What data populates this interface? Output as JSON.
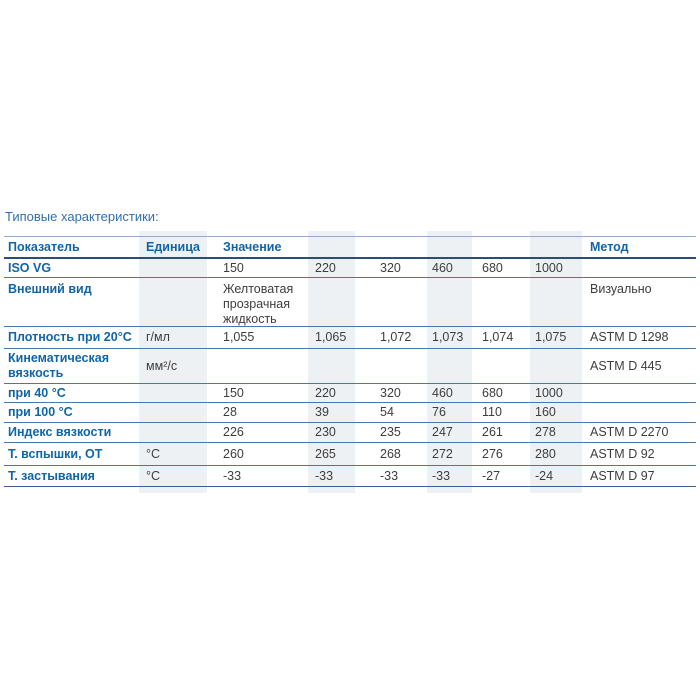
{
  "title": "Типовые характеристики:",
  "colors": {
    "accent_blue": "#1065a8",
    "title_blue": "#2f70ad",
    "stripe": "#eef1f4",
    "border_dark": "#2b4d7d",
    "border_light": "#4d76a8",
    "value_text": "#3d3d3d"
  },
  "table": {
    "headers": [
      "Показатель",
      "Единица",
      "Значение",
      "",
      "",
      "",
      "",
      "",
      "Метод"
    ],
    "rows": [
      {
        "cells": [
          "ISO VG",
          "",
          "150",
          "220",
          "320",
          "460",
          "680",
          "1000",
          ""
        ]
      },
      {
        "cells": [
          "Внешний вид",
          "",
          "Желтоватая прозрачная жидкость",
          "",
          "",
          "",
          "",
          "",
          "Визуально"
        ]
      },
      {
        "cells": [
          "Плотность при 20°C",
          "г/мл",
          "1,055",
          "1,065",
          "1,072",
          "1,073",
          "1,074",
          "1,075",
          "ASTM D 1298"
        ]
      },
      {
        "cells": [
          "Кинематическая вязкость",
          "мм²/с",
          "",
          "",
          "",
          "",
          "",
          "",
          "ASTM D 445"
        ]
      },
      {
        "cells": [
          "при 40 °C",
          "",
          "150",
          "220",
          "320",
          "460",
          "680",
          "1000",
          ""
        ]
      },
      {
        "cells": [
          "при 100 °C",
          "",
          "28",
          "39",
          "54",
          "76",
          "110",
          "160",
          ""
        ]
      },
      {
        "cells": [
          "Индекс вязкости",
          "",
          "226",
          "230",
          "235",
          "247",
          "261",
          "278",
          "ASTM D 2270"
        ]
      },
      {
        "cells": [
          "Т. вспышки, ОТ",
          "°C",
          "260",
          "265",
          "268",
          "272",
          "276",
          "280",
          "ASTM D 92"
        ]
      },
      {
        "cells": [
          "Т. застывания",
          "°C",
          "-33",
          "-33",
          "-33",
          "-33",
          "-27",
          "-24",
          "ASTM D 97"
        ]
      }
    ]
  }
}
